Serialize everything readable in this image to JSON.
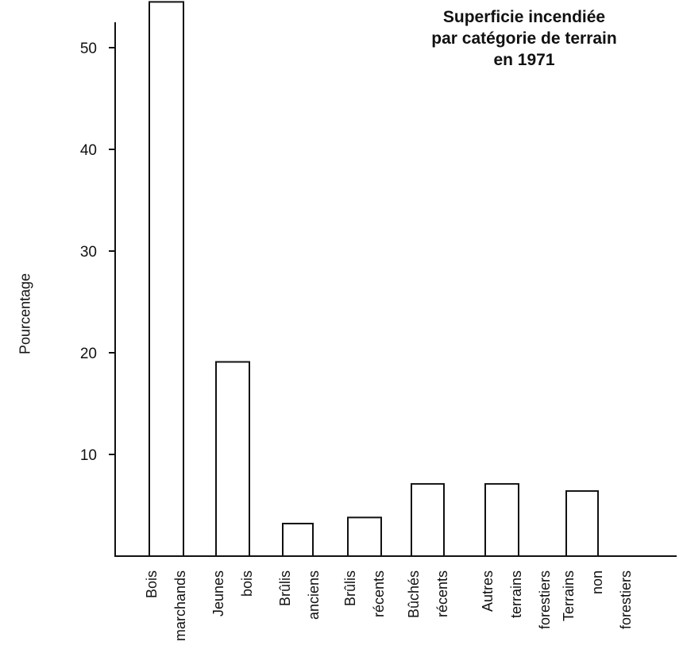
{
  "chart_data": {
    "type": "bar",
    "title": [
      "Superficie incendiée",
      "par catégorie de terrain",
      "en 1971"
    ],
    "ylabel": "Pourcentage",
    "xlabel": "",
    "ylim": [
      0,
      55
    ],
    "yticks": [
      10,
      20,
      30,
      40,
      50
    ],
    "categories": [
      [
        "Bois",
        "marchands"
      ],
      [
        "Jeunes",
        "bois"
      ],
      [
        "Brûlis",
        "anciens"
      ],
      [
        "Brûlis",
        "récents"
      ],
      [
        "Bûchés",
        "récents"
      ],
      [
        "Autres",
        "terrains",
        "forestiers"
      ],
      [
        "Terrains",
        "non",
        "forestiers"
      ]
    ],
    "values": [
      54.5,
      19.1,
      3.2,
      3.8,
      7.1,
      7.1,
      6.4
    ],
    "grid": false,
    "colors": {
      "bar_fill": "#ffffff",
      "bar_stroke": "#111111",
      "axis": "#111111"
    }
  }
}
